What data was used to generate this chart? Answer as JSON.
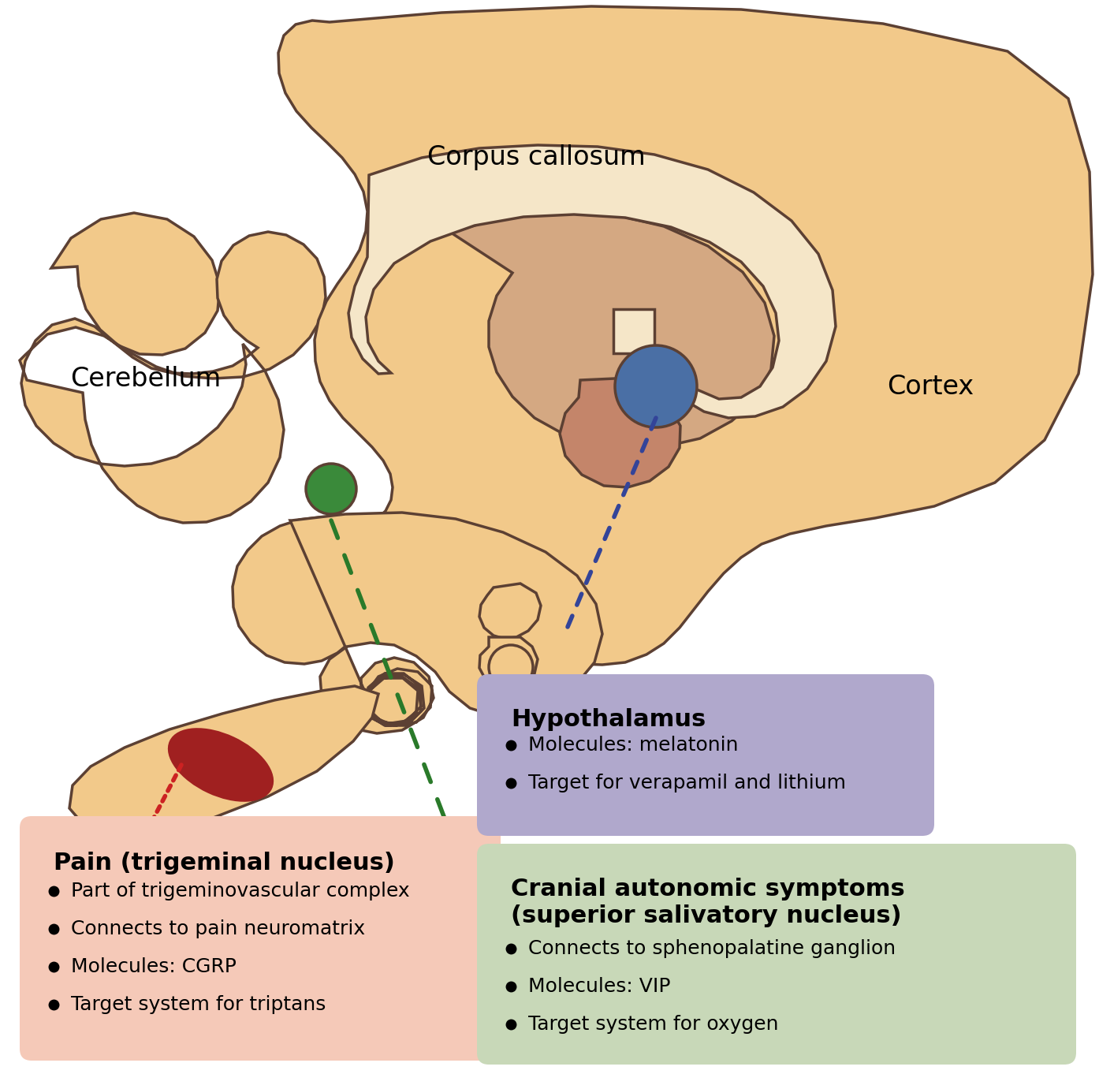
{
  "bg_color": "#ffffff",
  "brain_tan": "#F2C98A",
  "edge_color": "#5C4033",
  "corpus_fill": "#F5E6C8",
  "inner_fill": "#D4A882",
  "inner2_fill": "#C4856A",
  "blue_circle_color": "#4A6FA5",
  "green_circle_color": "#3A8A3A",
  "red_ellipse_color": "#A02020",
  "pain_box_color": "#F5C9B8",
  "hypothalamus_box_color": "#B0A8CC",
  "autonomic_box_color": "#C8D8B8",
  "pain_title": "Pain (trigeminal nucleus)",
  "pain_bullets": [
    "Part of trigeminovascular complex",
    "Connects to pain neuromatrix",
    "Molecules: CGRP",
    "Target system for triptans"
  ],
  "hypothalamus_title": "Hypothalamus",
  "hypothalamus_bullets": [
    "Molecules: melatonin",
    "Target for verapamil and lithium"
  ],
  "autonomic_title": "Cranial autonomic symptoms\n(superior salivatory nucleus)",
  "autonomic_bullets": [
    "Connects to sphenopalatine ganglion",
    "Molecules: VIP",
    "Target system for oxygen"
  ],
  "cerebellum_label": "Cerebellum",
  "corpus_label": "Corpus callosum",
  "cortex_label": "Cortex",
  "lw": 2.5
}
